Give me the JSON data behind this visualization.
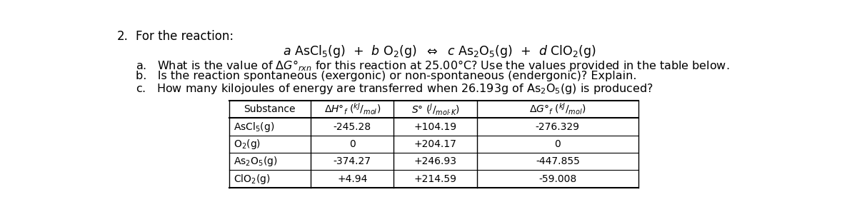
{
  "bg_color": "#ffffff",
  "text_color": "#000000",
  "title_number": "2.",
  "title_text": "For the reaction:",
  "reaction_text": "$a$ AsCl$_5$(g)  +  $b$ O$_2$(g)  $\\Leftrightarrow$  $c$ As$_2$O$_5$(g)  +  $d$ ClO$_2$(g)",
  "q_a": "a.   What is the value of $\\Delta G\\degree_{rxn}$ for this reaction at 25.00°C? Use the values provided in the table below.",
  "q_b": "b.   Is the reaction spontaneous (exergonic) or non-spontaneous (endergonic)? Explain.",
  "q_c": "c.   How many kilojoules of energy are transferred when 26.193g of As$_2$O$_5$(g) is produced?",
  "fs_title": 12,
  "fs_body": 11.5,
  "fs_table": 10,
  "fs_reaction": 12.5,
  "table_rows": [
    [
      "AsCl$_5$(g)",
      "-245.28",
      "+104.19",
      "-276.329"
    ],
    [
      "O$_2$(g)",
      "0",
      "+204.17",
      "0"
    ],
    [
      "As$_2$O$_5$(g)",
      "-374.27",
      "+246.93",
      "-447.855"
    ],
    [
      "ClO$_2$(g)",
      "+4.94",
      "+214.59",
      "-59.008"
    ]
  ],
  "col_header_0": "Substance",
  "col_header_1": "$\\Delta H\\degree_f\\ (^{kJ}/_{mol})$",
  "col_header_2": "$S\\degree\\ (^{J}/_{mol{\\cdot}K})$",
  "col_header_3": "$\\Delta G\\degree_f\\ (^{kJ}/_{mol})$"
}
